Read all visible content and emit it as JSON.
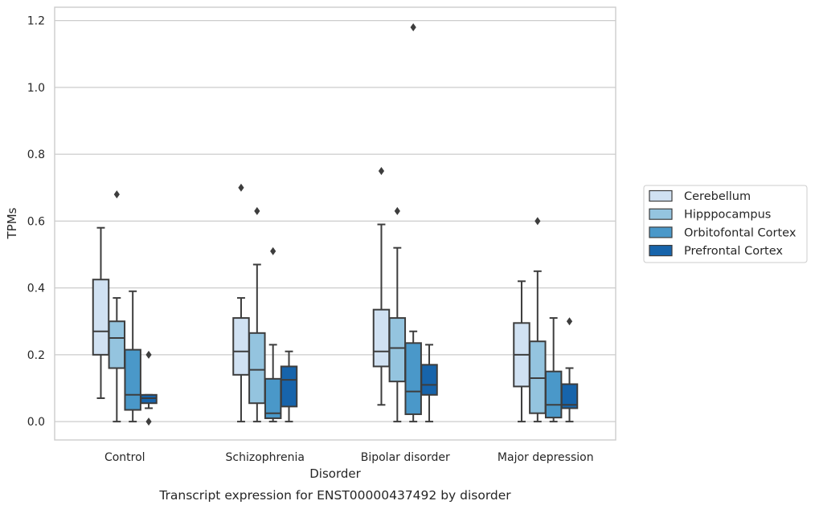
{
  "chart_data": {
    "type": "box",
    "xlabel": "Disorder",
    "ylabel": "TPMs",
    "caption": "Transcript expression for ENST00000437492 by disorder",
    "ylim": [
      -0.055,
      1.24
    ],
    "yticks": [
      "0.0",
      "0.2",
      "0.4",
      "0.6",
      "0.8",
      "1.0",
      "1.2"
    ],
    "ytick_values": [
      0,
      0.2,
      0.4,
      0.6,
      0.8,
      1.0,
      1.2
    ],
    "grid": "horizontal",
    "legend_position": "right",
    "categories": [
      "Control",
      "Schizophrenia",
      "Bipolar disorder",
      "Major depression"
    ],
    "series": [
      {
        "name": "Cerebellum",
        "color": "#d0e1f2",
        "boxes": [
          {
            "whislo": 0.07,
            "q1": 0.2,
            "med": 0.27,
            "q3": 0.425,
            "whishi": 0.58,
            "fliers": []
          },
          {
            "whislo": 0.0,
            "q1": 0.14,
            "med": 0.21,
            "q3": 0.31,
            "whishi": 0.37,
            "fliers": [
              0.7
            ]
          },
          {
            "whislo": 0.05,
            "q1": 0.165,
            "med": 0.21,
            "q3": 0.335,
            "whishi": 0.59,
            "fliers": [
              0.75
            ]
          },
          {
            "whislo": 0.0,
            "q1": 0.105,
            "med": 0.2,
            "q3": 0.295,
            "whishi": 0.42,
            "fliers": []
          }
        ]
      },
      {
        "name": "Hipppocampus",
        "color": "#94c4df",
        "boxes": [
          {
            "whislo": 0.0,
            "q1": 0.16,
            "med": 0.25,
            "q3": 0.3,
            "whishi": 0.37,
            "fliers": [
              0.68
            ]
          },
          {
            "whislo": 0.0,
            "q1": 0.055,
            "med": 0.155,
            "q3": 0.265,
            "whishi": 0.47,
            "fliers": [
              0.63
            ]
          },
          {
            "whislo": 0.0,
            "q1": 0.12,
            "med": 0.22,
            "q3": 0.31,
            "whishi": 0.52,
            "fliers": [
              0.63
            ]
          },
          {
            "whislo": 0.0,
            "q1": 0.025,
            "med": 0.13,
            "q3": 0.24,
            "whishi": 0.45,
            "fliers": [
              0.6
            ]
          }
        ]
      },
      {
        "name": "Orbitofontal Cortex",
        "color": "#4a98c9",
        "boxes": [
          {
            "whislo": 0.0,
            "q1": 0.035,
            "med": 0.08,
            "q3": 0.215,
            "whishi": 0.39,
            "fliers": []
          },
          {
            "whislo": 0.0,
            "q1": 0.01,
            "med": 0.025,
            "q3": 0.128,
            "whishi": 0.23,
            "fliers": [
              0.51
            ]
          },
          {
            "whislo": 0.0,
            "q1": 0.022,
            "med": 0.09,
            "q3": 0.235,
            "whishi": 0.27,
            "fliers": [
              1.18
            ]
          },
          {
            "whislo": 0.0,
            "q1": 0.012,
            "med": 0.05,
            "q3": 0.15,
            "whishi": 0.31,
            "fliers": []
          }
        ]
      },
      {
        "name": "Prefrontal Cortex",
        "color": "#1764ab",
        "boxes": [
          {
            "whislo": 0.04,
            "q1": 0.055,
            "med": 0.07,
            "q3": 0.08,
            "whishi": 0.08,
            "fliers": [
              0.2,
              0.0
            ]
          },
          {
            "whislo": 0.0,
            "q1": 0.045,
            "med": 0.125,
            "q3": 0.165,
            "whishi": 0.21,
            "fliers": []
          },
          {
            "whislo": 0.0,
            "q1": 0.08,
            "med": 0.11,
            "q3": 0.17,
            "whishi": 0.23,
            "fliers": []
          },
          {
            "whislo": 0.0,
            "q1": 0.04,
            "med": 0.05,
            "q3": 0.112,
            "whishi": 0.16,
            "fliers": [
              0.3
            ]
          }
        ]
      }
    ]
  }
}
